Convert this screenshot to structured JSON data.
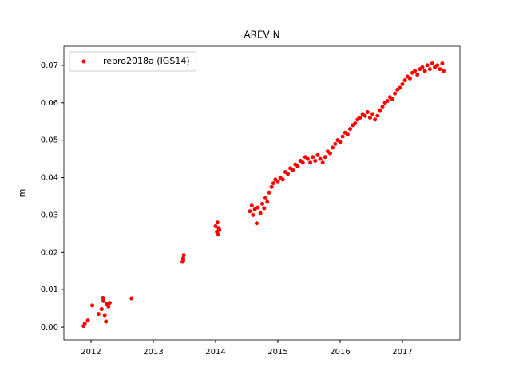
{
  "chart_data": {
    "type": "scatter",
    "title": "AREV N",
    "y_label": "m",
    "x": [
      2011.88,
      2011.9,
      2011.95,
      2012.02,
      2012.12,
      2012.17,
      2012.19,
      2012.2,
      2012.22,
      2012.24,
      2012.25,
      2012.28,
      2012.3,
      2012.65,
      2013.47,
      2013.48,
      2013.49,
      2013.48,
      2014.0,
      2014.02,
      2014.03,
      2014.04,
      2014.05,
      2014.06,
      2014.55,
      2014.58,
      2014.6,
      2014.63,
      2014.66,
      2014.68,
      2014.72,
      2014.75,
      2014.78,
      2014.8,
      2014.83,
      2014.86,
      2014.9,
      2014.93,
      2014.96,
      2015.0,
      2015.04,
      2015.08,
      2015.12,
      2015.16,
      2015.2,
      2015.24,
      2015.28,
      2015.32,
      2015.36,
      2015.4,
      2015.44,
      2015.48,
      2015.52,
      2015.56,
      2015.6,
      2015.64,
      2015.68,
      2015.72,
      2015.76,
      2015.8,
      2015.84,
      2015.88,
      2015.92,
      2015.96,
      2016.0,
      2016.04,
      2016.08,
      2016.12,
      2016.16,
      2016.2,
      2016.24,
      2016.28,
      2016.32,
      2016.36,
      2016.4,
      2016.44,
      2016.48,
      2016.52,
      2016.56,
      2016.6,
      2016.64,
      2016.68,
      2016.72,
      2016.76,
      2016.8,
      2016.84,
      2016.88,
      2016.92,
      2016.96,
      2017.0,
      2017.04,
      2017.08,
      2017.12,
      2017.16,
      2017.2,
      2017.24,
      2017.28,
      2017.32,
      2017.36,
      2017.4,
      2017.44,
      2017.48,
      2017.52,
      2017.56,
      2017.6,
      2017.64,
      2017.66
    ],
    "series": [
      {
        "name": "repro2018a (IGS14)",
        "color": "#ff0000",
        "values": [
          0.0003,
          0.001,
          0.0018,
          0.0058,
          0.0035,
          0.0048,
          0.0078,
          0.007,
          0.0032,
          0.0015,
          0.0062,
          0.0055,
          0.0065,
          0.0077,
          0.0175,
          0.0185,
          0.0193,
          0.0178,
          0.027,
          0.0255,
          0.028,
          0.0248,
          0.0265,
          0.026,
          0.031,
          0.0325,
          0.03,
          0.0315,
          0.0278,
          0.032,
          0.0305,
          0.033,
          0.0318,
          0.0345,
          0.0335,
          0.036,
          0.0375,
          0.0385,
          0.0395,
          0.039,
          0.04,
          0.0395,
          0.0415,
          0.041,
          0.0425,
          0.042,
          0.0435,
          0.043,
          0.0445,
          0.044,
          0.0455,
          0.045,
          0.044,
          0.0455,
          0.0445,
          0.046,
          0.045,
          0.044,
          0.0455,
          0.047,
          0.0465,
          0.048,
          0.049,
          0.05,
          0.0495,
          0.051,
          0.052,
          0.0515,
          0.053,
          0.054,
          0.0545,
          0.0555,
          0.056,
          0.057,
          0.0565,
          0.0575,
          0.056,
          0.057,
          0.0555,
          0.0565,
          0.058,
          0.059,
          0.06,
          0.0605,
          0.0615,
          0.061,
          0.0625,
          0.0635,
          0.064,
          0.065,
          0.066,
          0.067,
          0.0665,
          0.068,
          0.0685,
          0.0675,
          0.069,
          0.0695,
          0.0685,
          0.07,
          0.069,
          0.0705,
          0.0695,
          0.07,
          0.069,
          0.0705,
          0.0685
        ]
      }
    ],
    "xlim": [
      2011.564,
      2017.923
    ],
    "xticks": [
      2012,
      2013,
      2014,
      2015,
      2016,
      2017
    ],
    "ylim": [
      -0.0034,
      0.0751
    ],
    "yticks": [
      {
        "value": 0,
        "label": "0.00"
      },
      {
        "value": 0.01,
        "label": "0.01"
      },
      {
        "value": 0.02,
        "label": "0.02"
      },
      {
        "value": 0.03,
        "label": "0.03"
      },
      {
        "value": 0.04,
        "label": "0.04"
      },
      {
        "value": 0.05,
        "label": "0.05"
      },
      {
        "value": 0.06,
        "label": "0.06"
      },
      {
        "value": 0.07,
        "label": "0.07"
      }
    ],
    "legend": "upper left"
  }
}
